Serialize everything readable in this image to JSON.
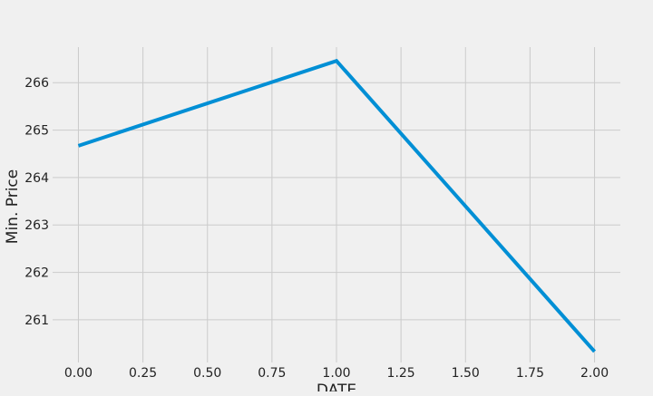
{
  "chart_data": {
    "type": "line",
    "title": "",
    "xlabel": "DATE",
    "ylabel": "Min. Price",
    "x": [
      0.0,
      1.0,
      2.0
    ],
    "series": [
      {
        "values": [
          264.67,
          266.46,
          260.33
        ]
      }
    ],
    "xlim": [
      -0.1,
      2.1
    ],
    "ylim": [
      260.1,
      266.75
    ],
    "xticks": [
      0.0,
      0.25,
      0.5,
      0.75,
      1.0,
      1.25,
      1.5,
      1.75,
      2.0
    ],
    "xtick_labels": [
      "0.00",
      "0.25",
      "0.50",
      "0.75",
      "1.00",
      "1.25",
      "1.50",
      "1.75",
      "2.00"
    ],
    "yticks": [
      261,
      262,
      263,
      264,
      265,
      266
    ],
    "ytick_labels": [
      "261",
      "262",
      "263",
      "264",
      "265",
      "266"
    ],
    "grid": true,
    "legend": "none",
    "colors": {
      "line": "#008fd5",
      "grid": "#cbcbcb",
      "background": "#f0f0f0"
    }
  }
}
